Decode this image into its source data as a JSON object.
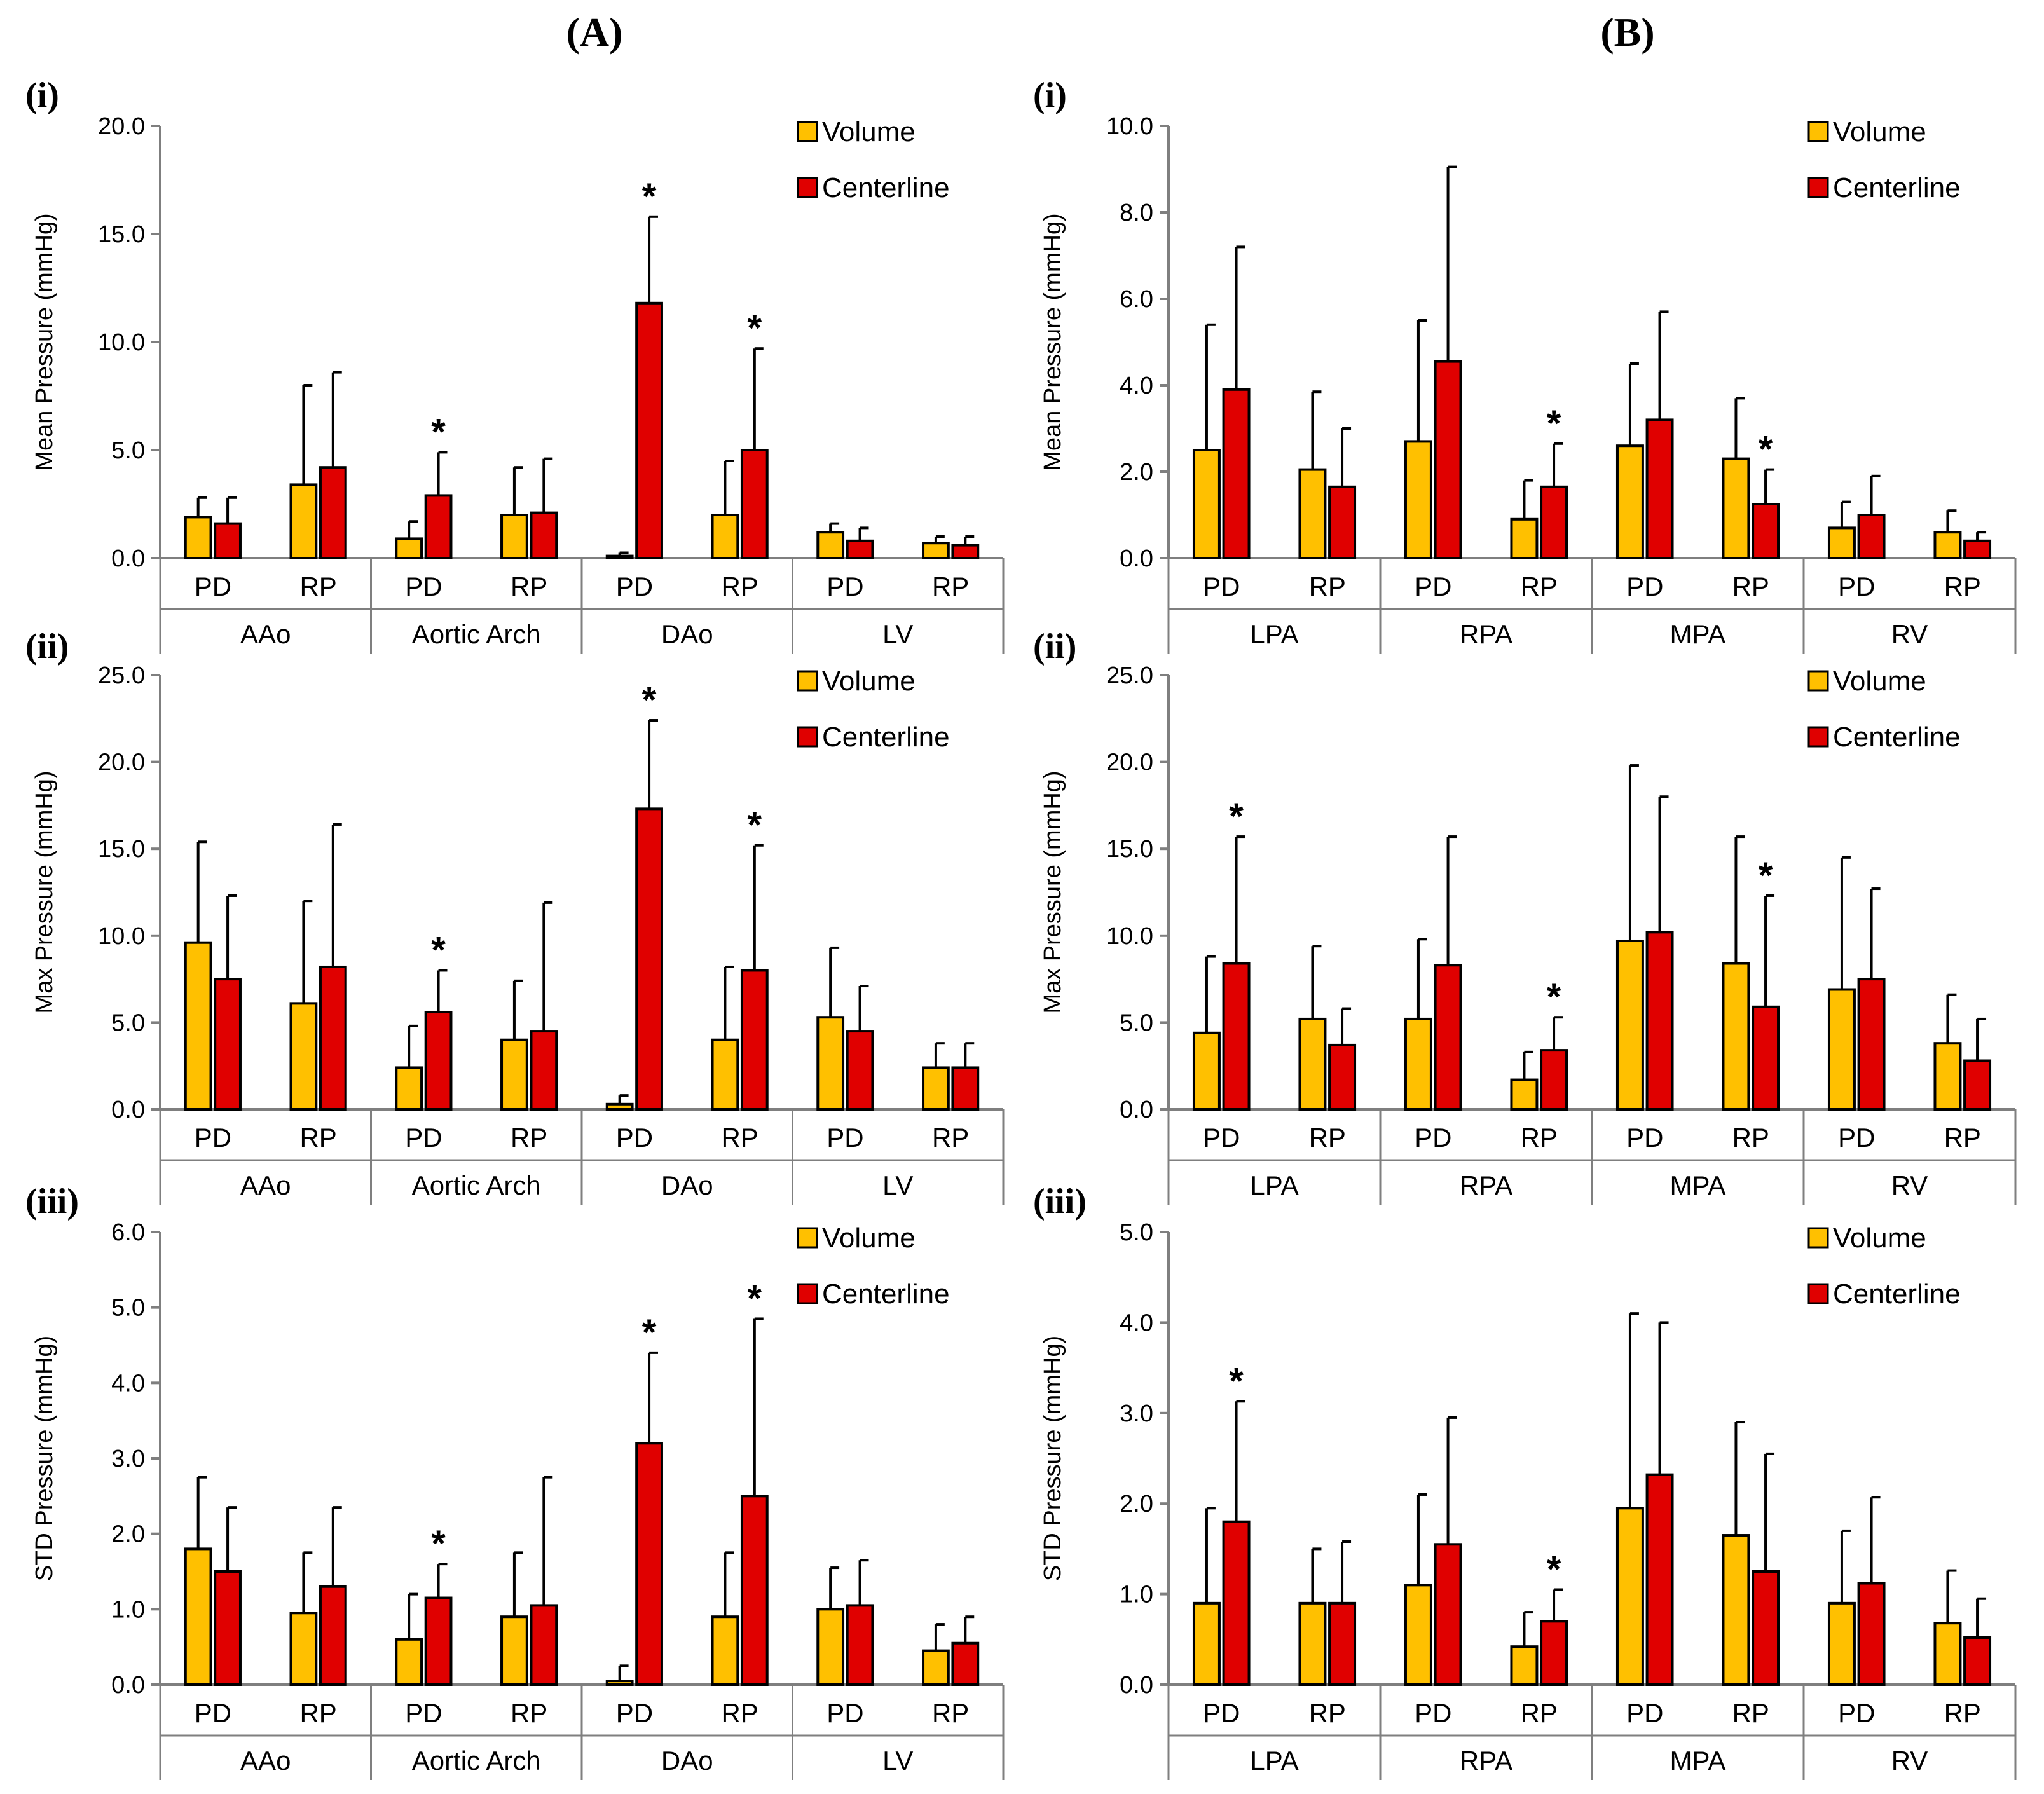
{
  "column_titles": [
    "(A)",
    "(B)"
  ],
  "colors": {
    "volume": "#FFC000",
    "centerline": "#E00000",
    "outline": "#000000",
    "axis": "#7f7f7f"
  },
  "chart_data": [
    {
      "type": "bar",
      "column": "A",
      "panel": "(i)",
      "ylabel": "Mean Pressure (mmHg)",
      "ylim": [
        0,
        20
      ],
      "yticks": [
        "0.0",
        "5.0",
        "10.0",
        "15.0",
        "20.0"
      ],
      "groups": [
        "AAo",
        "Aortic Arch",
        "DAo",
        "LV"
      ],
      "subcategories": [
        "PD",
        "RP"
      ],
      "legend": [
        "Volume",
        "Centerline"
      ],
      "series": [
        {
          "name": "Volume",
          "values": [
            1.9,
            3.4,
            0.9,
            2.0,
            0.1,
            2.0,
            1.2,
            0.7
          ],
          "errors": [
            0.9,
            4.6,
            0.8,
            2.2,
            0.15,
            2.5,
            0.4,
            0.3
          ]
        },
        {
          "name": "Centerline",
          "values": [
            1.6,
            4.2,
            2.9,
            2.1,
            11.8,
            5.0,
            0.8,
            0.6
          ],
          "errors": [
            1.2,
            4.4,
            2.0,
            2.5,
            4.0,
            4.7,
            0.6,
            0.4
          ]
        }
      ],
      "significance": [
        {
          "index": 2,
          "series": "Centerline",
          "label": "*"
        },
        {
          "index": 4,
          "series": "Centerline",
          "label": "*"
        },
        {
          "index": 5,
          "series": "Centerline",
          "label": "*"
        }
      ]
    },
    {
      "type": "bar",
      "column": "A",
      "panel": "(ii)",
      "ylabel": "Max Pressure (mmHg)",
      "ylim": [
        0,
        25
      ],
      "yticks": [
        "0.0",
        "5.0",
        "10.0",
        "15.0",
        "20.0",
        "25.0"
      ],
      "groups": [
        "AAo",
        "Aortic Arch",
        "DAo",
        "LV"
      ],
      "subcategories": [
        "PD",
        "RP"
      ],
      "legend": [
        "Volume",
        "Centerline"
      ],
      "series": [
        {
          "name": "Volume",
          "values": [
            9.6,
            6.1,
            2.4,
            4.0,
            0.3,
            4.0,
            5.3,
            2.4
          ],
          "errors": [
            5.8,
            5.9,
            2.4,
            3.4,
            0.5,
            4.2,
            4.0,
            1.4
          ]
        },
        {
          "name": "Centerline",
          "values": [
            7.5,
            8.2,
            5.6,
            4.5,
            17.3,
            8.0,
            4.5,
            2.4
          ],
          "errors": [
            4.8,
            8.2,
            2.4,
            7.4,
            5.1,
            7.2,
            2.6,
            1.4
          ]
        }
      ],
      "significance": [
        {
          "index": 2,
          "series": "Centerline",
          "label": "*"
        },
        {
          "index": 4,
          "series": "Centerline",
          "label": "*"
        },
        {
          "index": 5,
          "series": "Centerline",
          "label": "*"
        }
      ]
    },
    {
      "type": "bar",
      "column": "A",
      "panel": "(iii)",
      "ylabel": "STD Pressure (mmHg)",
      "ylim": [
        0,
        6
      ],
      "yticks": [
        "0.0",
        "1.0",
        "2.0",
        "3.0",
        "4.0",
        "5.0",
        "6.0"
      ],
      "groups": [
        "AAo",
        "Aortic Arch",
        "DAo",
        "LV"
      ],
      "subcategories": [
        "PD",
        "RP"
      ],
      "legend": [
        "Volume",
        "Centerline"
      ],
      "series": [
        {
          "name": "Volume",
          "values": [
            1.8,
            0.95,
            0.6,
            0.9,
            0.05,
            0.9,
            1.0,
            0.45
          ],
          "errors": [
            0.95,
            0.8,
            0.6,
            0.85,
            0.2,
            0.85,
            0.55,
            0.35
          ]
        },
        {
          "name": "Centerline",
          "values": [
            1.5,
            1.3,
            1.15,
            1.05,
            3.2,
            2.5,
            1.05,
            0.55
          ],
          "errors": [
            0.85,
            1.05,
            0.45,
            1.7,
            1.2,
            2.35,
            0.6,
            0.35
          ]
        }
      ],
      "significance": [
        {
          "index": 2,
          "series": "Centerline",
          "label": "*"
        },
        {
          "index": 4,
          "series": "Centerline",
          "label": "*"
        },
        {
          "index": 5,
          "series": "Centerline",
          "label": "*"
        }
      ]
    },
    {
      "type": "bar",
      "column": "B",
      "panel": "(i)",
      "ylabel": "Mean Pressure (mmHg)",
      "ylim": [
        0,
        10
      ],
      "yticks": [
        "0.0",
        "2.0",
        "4.0",
        "6.0",
        "8.0",
        "10.0"
      ],
      "groups": [
        "LPA",
        "RPA",
        "MPA",
        "RV"
      ],
      "subcategories": [
        "PD",
        "RP"
      ],
      "legend": [
        "Volume",
        "Centerline"
      ],
      "series": [
        {
          "name": "Volume",
          "values": [
            2.5,
            2.05,
            2.7,
            0.9,
            2.6,
            2.3,
            0.7,
            0.6
          ],
          "errors": [
            2.9,
            1.8,
            2.8,
            0.9,
            1.9,
            1.4,
            0.6,
            0.5
          ]
        },
        {
          "name": "Centerline",
          "values": [
            3.9,
            1.65,
            4.55,
            1.65,
            3.2,
            1.25,
            1.0,
            0.4
          ],
          "errors": [
            3.3,
            1.35,
            4.5,
            1.0,
            2.5,
            0.8,
            0.9,
            0.2
          ]
        }
      ],
      "significance": [
        {
          "index": 3,
          "series": "Centerline",
          "label": "*"
        },
        {
          "index": 5,
          "series": "Centerline",
          "label": "*"
        }
      ]
    },
    {
      "type": "bar",
      "column": "B",
      "panel": "(ii)",
      "ylabel": "Max Pressure (mmHg)",
      "ylim": [
        0,
        25
      ],
      "yticks": [
        "0.0",
        "5.0",
        "10.0",
        "15.0",
        "20.0",
        "25.0"
      ],
      "groups": [
        "LPA",
        "RPA",
        "MPA",
        "RV"
      ],
      "subcategories": [
        "PD",
        "RP"
      ],
      "legend": [
        "Volume",
        "Centerline"
      ],
      "series": [
        {
          "name": "Volume",
          "values": [
            4.4,
            5.2,
            5.2,
            1.7,
            9.7,
            8.4,
            6.9,
            3.8
          ],
          "errors": [
            4.4,
            4.2,
            4.6,
            1.6,
            10.1,
            7.3,
            7.6,
            2.8
          ]
        },
        {
          "name": "Centerline",
          "values": [
            8.4,
            3.7,
            8.3,
            3.4,
            10.2,
            5.9,
            7.5,
            2.8
          ],
          "errors": [
            7.3,
            2.1,
            7.4,
            1.9,
            7.8,
            6.4,
            5.2,
            2.4
          ]
        }
      ],
      "significance": [
        {
          "index": 0,
          "series": "Centerline",
          "label": "*"
        },
        {
          "index": 3,
          "series": "Centerline",
          "label": "*"
        },
        {
          "index": 5,
          "series": "Centerline",
          "label": "*"
        }
      ]
    },
    {
      "type": "bar",
      "column": "B",
      "panel": "(iii)",
      "ylabel": "STD Pressure (mmHg)",
      "ylim": [
        0,
        5
      ],
      "yticks": [
        "0.0",
        "1.0",
        "2.0",
        "3.0",
        "4.0",
        "5.0"
      ],
      "groups": [
        "LPA",
        "RPA",
        "MPA",
        "RV"
      ],
      "subcategories": [
        "PD",
        "RP"
      ],
      "legend": [
        "Volume",
        "Centerline"
      ],
      "series": [
        {
          "name": "Volume",
          "values": [
            0.9,
            0.9,
            1.1,
            0.42,
            1.95,
            1.65,
            0.9,
            0.68
          ],
          "errors": [
            1.05,
            0.6,
            1.0,
            0.38,
            2.15,
            1.25,
            0.8,
            0.58
          ]
        },
        {
          "name": "Centerline",
          "values": [
            1.8,
            0.9,
            1.55,
            0.7,
            2.32,
            1.25,
            1.12,
            0.52
          ],
          "errors": [
            1.33,
            0.68,
            1.4,
            0.35,
            1.68,
            1.3,
            0.95,
            0.43
          ]
        }
      ],
      "significance": [
        {
          "index": 0,
          "series": "Centerline",
          "label": "*"
        },
        {
          "index": 3,
          "series": "Centerline",
          "label": "*"
        }
      ]
    }
  ]
}
